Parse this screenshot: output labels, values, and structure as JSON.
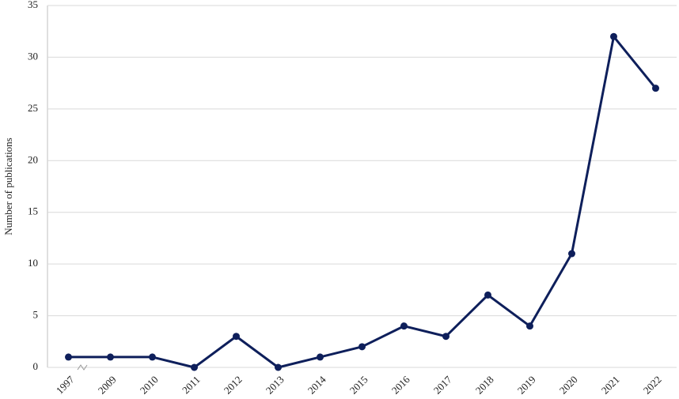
{
  "chart_data": {
    "type": "line",
    "y_label": "Number of publications",
    "categories": [
      "1997",
      "2009",
      "2010",
      "2011",
      "2012",
      "2013",
      "2014",
      "2015",
      "2016",
      "2017",
      "2018",
      "2019",
      "2020",
      "2021",
      "2022"
    ],
    "values": [
      1,
      1,
      1,
      0,
      3,
      0,
      1,
      2,
      4,
      3,
      7,
      4,
      11,
      32,
      27
    ],
    "color": "#0e1f5b",
    "ylim": [
      0,
      35
    ],
    "yticks": [
      0,
      5,
      10,
      15,
      20,
      25,
      30,
      35
    ],
    "grid": true
  }
}
